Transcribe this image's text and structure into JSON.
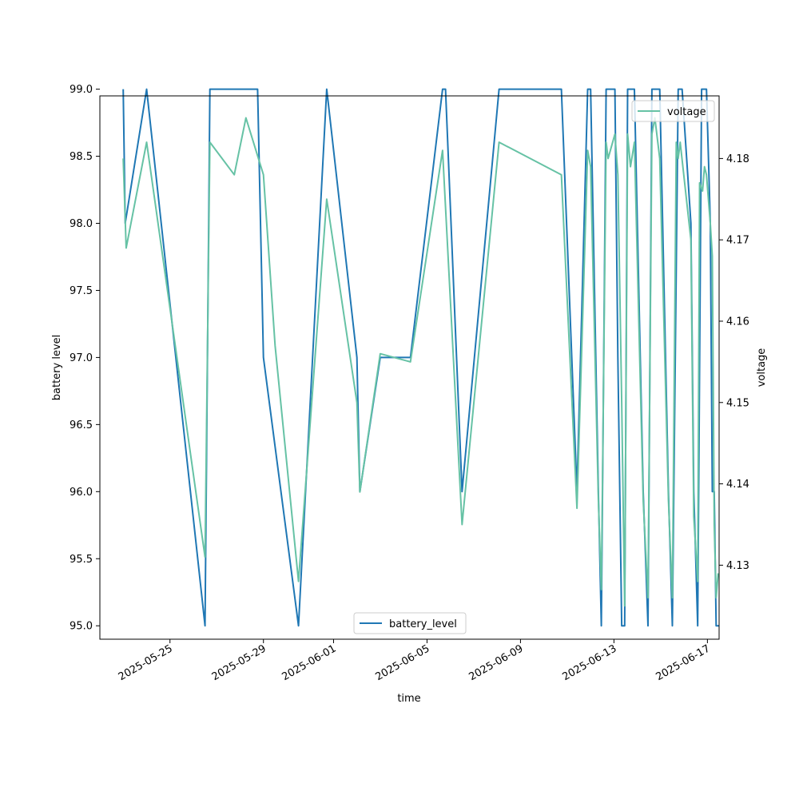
{
  "chart_data": {
    "type": "line",
    "title": "",
    "xlabel": "time",
    "ylabel_left": "battery level",
    "ylabel_right": "voltage",
    "x_ticks": [
      "2025-05-25",
      "2025-05-29",
      "2025-06-01",
      "2025-06-05",
      "2025-06-09",
      "2025-06-13",
      "2025-06-17"
    ],
    "y_left_ticks": [
      "95.0",
      "95.5",
      "96.0",
      "96.5",
      "97.0",
      "97.5",
      "98.0",
      "98.5",
      "99.0"
    ],
    "y_right_ticks": [
      "4.13",
      "4.14",
      "4.15",
      "4.16",
      "4.17",
      "4.18"
    ],
    "xlim": [
      "2025-05-22T00:00",
      "2025-06-17T12:00"
    ],
    "ylim_left": [
      94.9,
      98.95
    ],
    "ylim_right": [
      4.1209,
      4.1877
    ],
    "legend_left": {
      "position": "lower center",
      "entries": [
        "battery_level"
      ]
    },
    "legend_right": {
      "position": "upper right",
      "entries": [
        "voltage"
      ]
    },
    "grid": false,
    "series": [
      {
        "name": "battery_level",
        "axis": "left",
        "color": "#1f77b4",
        "points": [
          [
            "2025-05-23T00:00",
            99.0
          ],
          [
            "2025-05-23T02:00",
            98.0
          ],
          [
            "2025-05-24T00:00",
            99.0
          ],
          [
            "2025-05-26T12:00",
            95.0
          ],
          [
            "2025-05-26T17:00",
            99.0
          ],
          [
            "2025-05-28T18:00",
            99.0
          ],
          [
            "2025-05-29T00:00",
            97.0
          ],
          [
            "2025-05-30T12:00",
            95.0
          ],
          [
            "2025-05-31T17:00",
            99.0
          ],
          [
            "2025-06-02T00:00",
            97.0
          ],
          [
            "2025-06-02T03:00",
            96.0
          ],
          [
            "2025-06-03T00:00",
            97.0
          ],
          [
            "2025-06-04T07:00",
            97.0
          ],
          [
            "2025-06-05T16:00",
            99.0
          ],
          [
            "2025-06-05T19:00",
            99.0
          ],
          [
            "2025-06-06T12:00",
            96.0
          ],
          [
            "2025-06-08T02:00",
            99.0
          ],
          [
            "2025-06-10T18:00",
            99.0
          ],
          [
            "2025-06-11T10:00",
            96.0
          ],
          [
            "2025-06-11T21:00",
            99.0
          ],
          [
            "2025-06-12T00:00",
            99.0
          ],
          [
            "2025-06-12T08:00",
            96.0
          ],
          [
            "2025-06-12T11:00",
            95.0
          ],
          [
            "2025-06-12T16:00",
            99.0
          ],
          [
            "2025-06-13T01:00",
            99.0
          ],
          [
            "2025-06-13T04:00",
            97.0
          ],
          [
            "2025-06-13T08:00",
            95.0
          ],
          [
            "2025-06-13T11:00",
            95.0
          ],
          [
            "2025-06-13T14:00",
            99.0
          ],
          [
            "2025-06-13T21:00",
            99.0
          ],
          [
            "2025-06-14T06:00",
            96.0
          ],
          [
            "2025-06-14T11:00",
            95.0
          ],
          [
            "2025-06-14T15:00",
            99.0
          ],
          [
            "2025-06-14T23:00",
            99.0
          ],
          [
            "2025-06-15T08:00",
            96.0
          ],
          [
            "2025-06-15T12:00",
            95.0
          ],
          [
            "2025-06-15T18:00",
            99.0
          ],
          [
            "2025-06-15T22:00",
            99.0
          ],
          [
            "2025-06-16T07:00",
            98.0
          ],
          [
            "2025-06-16T10:00",
            96.0
          ],
          [
            "2025-06-16T14:00",
            95.0
          ],
          [
            "2025-06-16T18:00",
            99.0
          ],
          [
            "2025-06-16T23:00",
            99.0
          ],
          [
            "2025-06-17T03:00",
            98.0
          ],
          [
            "2025-06-17T05:00",
            96.0
          ],
          [
            "2025-06-17T07:00",
            96.0
          ],
          [
            "2025-06-17T09:00",
            95.0
          ],
          [
            "2025-06-17T12:00",
            95.0
          ]
        ]
      },
      {
        "name": "voltage",
        "axis": "right",
        "color": "#66c2a5",
        "points": [
          [
            "2025-05-23T00:00",
            4.18
          ],
          [
            "2025-05-23T03:00",
            4.169
          ],
          [
            "2025-05-24T00:00",
            4.182
          ],
          [
            "2025-05-26T12:00",
            4.131
          ],
          [
            "2025-05-26T17:00",
            4.182
          ],
          [
            "2025-05-27T18:00",
            4.178
          ],
          [
            "2025-05-28T06:00",
            4.185
          ],
          [
            "2025-05-29T00:00",
            4.178
          ],
          [
            "2025-05-29T12:00",
            4.157
          ],
          [
            "2025-05-30T12:00",
            4.128
          ],
          [
            "2025-05-31T17:00",
            4.175
          ],
          [
            "2025-06-02T00:00",
            4.15
          ],
          [
            "2025-06-02T03:00",
            4.139
          ],
          [
            "2025-06-03T00:00",
            4.156
          ],
          [
            "2025-06-04T07:00",
            4.155
          ],
          [
            "2025-06-05T16:00",
            4.181
          ],
          [
            "2025-06-06T12:00",
            4.135
          ],
          [
            "2025-06-08T02:00",
            4.182
          ],
          [
            "2025-06-10T18:00",
            4.178
          ],
          [
            "2025-06-11T10:00",
            4.137
          ],
          [
            "2025-06-11T21:00",
            4.181
          ],
          [
            "2025-06-12T00:00",
            4.179
          ],
          [
            "2025-06-12T08:00",
            4.138
          ],
          [
            "2025-06-12T11:00",
            4.127
          ],
          [
            "2025-06-12T16:00",
            4.182
          ],
          [
            "2025-06-12T18:00",
            4.18
          ],
          [
            "2025-06-13T01:00",
            4.183
          ],
          [
            "2025-06-13T04:00",
            4.178
          ],
          [
            "2025-06-13T08:00",
            4.15
          ],
          [
            "2025-06-13T11:00",
            4.125
          ],
          [
            "2025-06-13T14:00",
            4.183
          ],
          [
            "2025-06-13T17:00",
            4.179
          ],
          [
            "2025-06-13T21:00",
            4.182
          ],
          [
            "2025-06-14T06:00",
            4.138
          ],
          [
            "2025-06-14T11:00",
            4.126
          ],
          [
            "2025-06-14T15:00",
            4.183
          ],
          [
            "2025-06-14T18:00",
            4.185
          ],
          [
            "2025-06-14T23:00",
            4.18
          ],
          [
            "2025-06-15T08:00",
            4.138
          ],
          [
            "2025-06-15T12:00",
            4.126
          ],
          [
            "2025-06-15T16:00",
            4.182
          ],
          [
            "2025-06-15T18:00",
            4.18
          ],
          [
            "2025-06-15T20:00",
            4.182
          ],
          [
            "2025-06-16T07:00",
            4.17
          ],
          [
            "2025-06-16T10:00",
            4.136
          ],
          [
            "2025-06-16T14:00",
            4.128
          ],
          [
            "2025-06-16T16:00",
            4.177
          ],
          [
            "2025-06-16T19:00",
            4.176
          ],
          [
            "2025-06-16T21:00",
            4.179
          ],
          [
            "2025-06-16T23:00",
            4.178
          ],
          [
            "2025-06-17T03:00",
            4.172
          ],
          [
            "2025-06-17T05:00",
            4.168
          ],
          [
            "2025-06-17T07:00",
            4.135
          ],
          [
            "2025-06-17T09:00",
            4.126
          ],
          [
            "2025-06-17T11:00",
            4.129
          ]
        ]
      }
    ]
  }
}
